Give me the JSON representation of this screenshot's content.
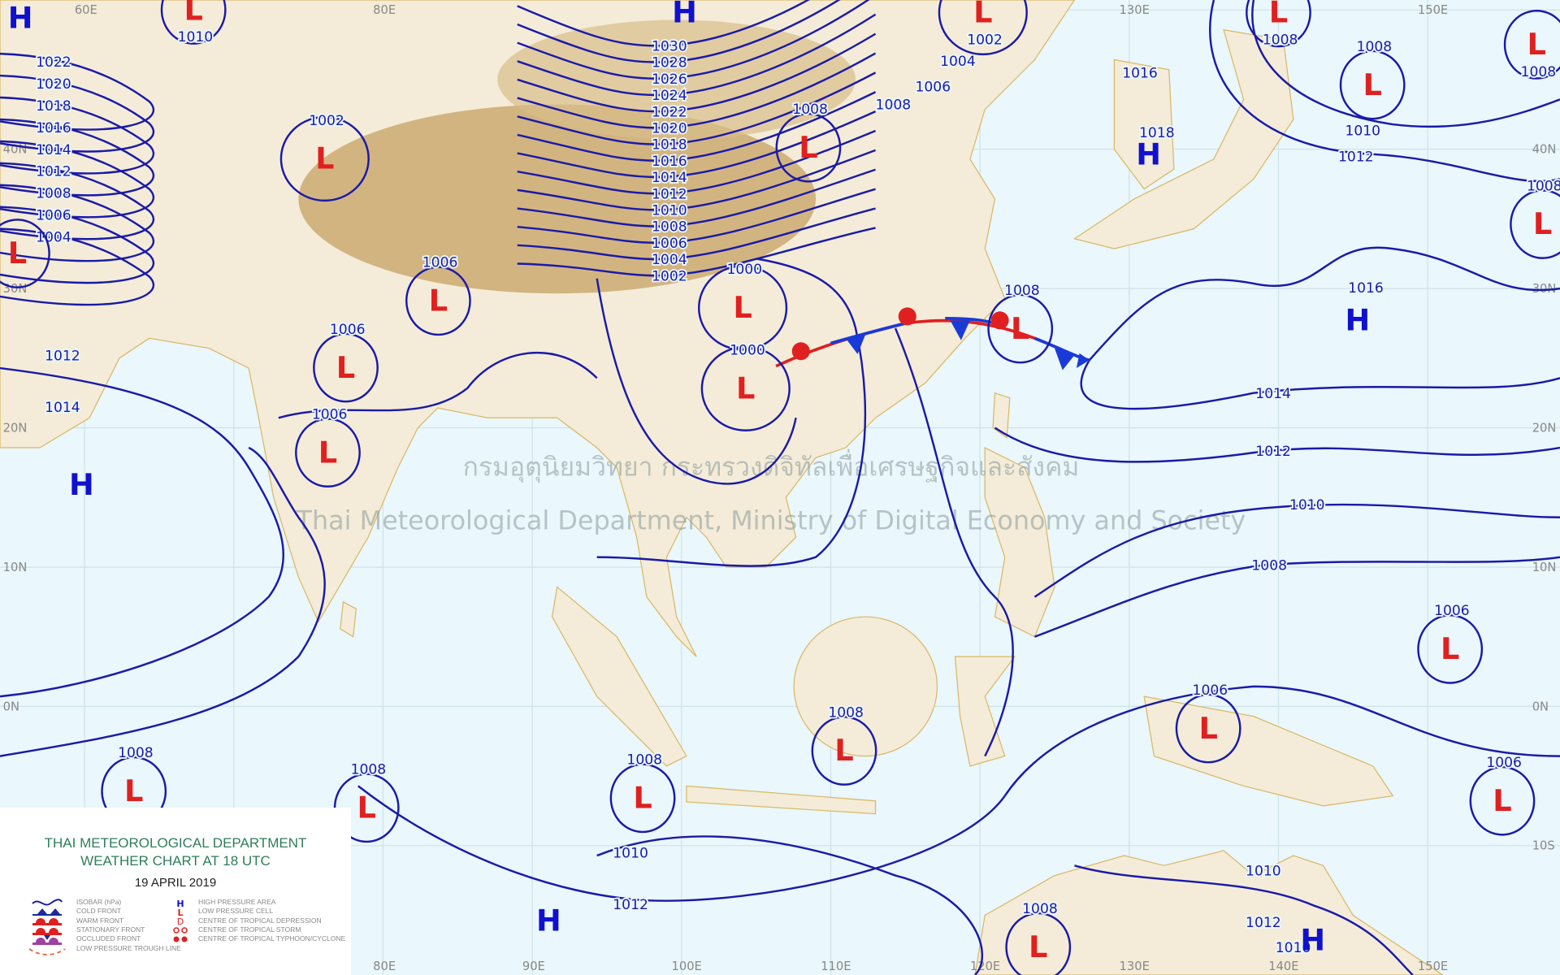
{
  "legend": {
    "title_line1": "THAI METEOROLOGICAL DEPARTMENT",
    "title_line2": "WEATHER CHART AT   18   UTC",
    "date": "19 APRIL 2019",
    "left_items": [
      "ISOBAR (hPa)",
      "COLD FRONT",
      "WARM FRONT",
      "STATIONARY FRONT",
      "OCCLUDED FRONT",
      "LOW PRESSURE TROUGH LINE"
    ],
    "right_items": [
      {
        "symbol": "H",
        "label": "HIGH PRESSURE AREA"
      },
      {
        "symbol": "L",
        "label": "LOW PRESSURE CELL"
      },
      {
        "symbol": "D",
        "label": "CENTRE OF TROPICAL DEPRESSION"
      },
      {
        "symbol": "open-circles",
        "label": "CENTRE OF TROPICAL STORM"
      },
      {
        "symbol": "filled-circles",
        "label": "CENTRE OF TROPICAL TYPHOON/CYCLONE"
      }
    ]
  },
  "watermark": {
    "thai": "กรมอุตุนิยมวิทยา กระทรวงดิจิทัลเพื่อเศรษฐกิจและสังคม",
    "english": "Thai Meteorological Department, Ministry of Digital Economy and Society"
  },
  "longitude_labels": [
    "60E",
    "80E",
    "90E",
    "100E",
    "110E",
    "120E",
    "130E",
    "140E",
    "150E"
  ],
  "latitude_labels": [
    "40N",
    "30N",
    "20N",
    "10N",
    "0N",
    "10S"
  ],
  "colors": {
    "isobar": "#1a1aa8",
    "high": "#1010d0",
    "low": "#e02020",
    "sea": "#eaf7fc",
    "land": "#f4ecd8",
    "plateau": "#c9a66b",
    "legend_title": "#2e7d5b"
  },
  "pressure_centers": [
    {
      "type": "H",
      "lon": 55.7,
      "lat": 48.7,
      "value": ""
    },
    {
      "type": "L",
      "lon": 67.3,
      "lat": 49.3,
      "value": "1010"
    },
    {
      "type": "H",
      "lon": 100.2,
      "lat": 49.1,
      "value": ""
    },
    {
      "type": "L",
      "lon": 120.2,
      "lat": 49.1,
      "value": "1002"
    },
    {
      "type": "L",
      "lon": 140.0,
      "lat": 49.1,
      "value": "1008"
    },
    {
      "type": "L",
      "lon": 157.3,
      "lat": 46.8,
      "value": "1008"
    },
    {
      "type": "L",
      "lon": 146.3,
      "lat": 43.9,
      "value": "1008"
    },
    {
      "type": "H",
      "lon": 131.3,
      "lat": 38.9,
      "value": ""
    },
    {
      "type": "L",
      "lon": 76.1,
      "lat": 38.6,
      "value": "1002"
    },
    {
      "type": "L",
      "lon": 108.5,
      "lat": 39.4,
      "value": "1008"
    },
    {
      "type": "L",
      "lon": 157.7,
      "lat": 33.9,
      "value": "1008"
    },
    {
      "type": "L",
      "lon": 55.5,
      "lat": 31.8,
      "value": ""
    },
    {
      "type": "L",
      "lon": 83.7,
      "lat": 28.4,
      "value": "1006"
    },
    {
      "type": "L",
      "lon": 104.1,
      "lat": 27.9,
      "value": "1000"
    },
    {
      "type": "L",
      "lon": 122.7,
      "lat": 26.4,
      "value": "1008"
    },
    {
      "type": "H",
      "lon": 145.3,
      "lat": 27.0,
      "value": ""
    },
    {
      "type": "L",
      "lon": 77.5,
      "lat": 23.6,
      "value": "1006"
    },
    {
      "type": "L",
      "lon": 104.3,
      "lat": 22.1,
      "value": "1000"
    },
    {
      "type": "L",
      "lon": 76.3,
      "lat": 17.5,
      "value": "1006"
    },
    {
      "type": "H",
      "lon": 59.8,
      "lat": 15.2,
      "value": ""
    },
    {
      "type": "L",
      "lon": 151.5,
      "lat": 3.4,
      "value": "1006"
    },
    {
      "type": "L",
      "lon": 135.3,
      "lat": -2.3,
      "value": "1006"
    },
    {
      "type": "L",
      "lon": 110.9,
      "lat": -3.9,
      "value": "1008"
    },
    {
      "type": "L",
      "lon": 63.3,
      "lat": -6.8,
      "value": "1008"
    },
    {
      "type": "L",
      "lon": 78.9,
      "lat": -8.0,
      "value": "1008"
    },
    {
      "type": "L",
      "lon": 97.4,
      "lat": -7.3,
      "value": "1008"
    },
    {
      "type": "L",
      "lon": 155.0,
      "lat": -7.5,
      "value": "1006"
    },
    {
      "type": "H",
      "lon": 91.1,
      "lat": -16.1,
      "value": ""
    },
    {
      "type": "L",
      "lon": 123.9,
      "lat": -18.0,
      "value": "1008"
    },
    {
      "type": "H",
      "lon": 142.3,
      "lat": -17.5,
      "value": ""
    }
  ],
  "isobar_labels": {
    "west_stack": [
      "1022",
      "1020",
      "1018",
      "1016",
      "1014",
      "1012",
      "1008",
      "1006",
      "1004"
    ],
    "central_stack": [
      "1030",
      "1028",
      "1026",
      "1024",
      "1022",
      "1020",
      "1018",
      "1016",
      "1014",
      "1012",
      "1010",
      "1008",
      "1006",
      "1004",
      "1002"
    ],
    "other": [
      "1016",
      "1018",
      "1010",
      "1012",
      "1016",
      "1014",
      "1012",
      "1010",
      "1008",
      "1004",
      "1006",
      "1008",
      "1010",
      "1012",
      "1010",
      "1012",
      "1010",
      "1012",
      "1014"
    ]
  }
}
